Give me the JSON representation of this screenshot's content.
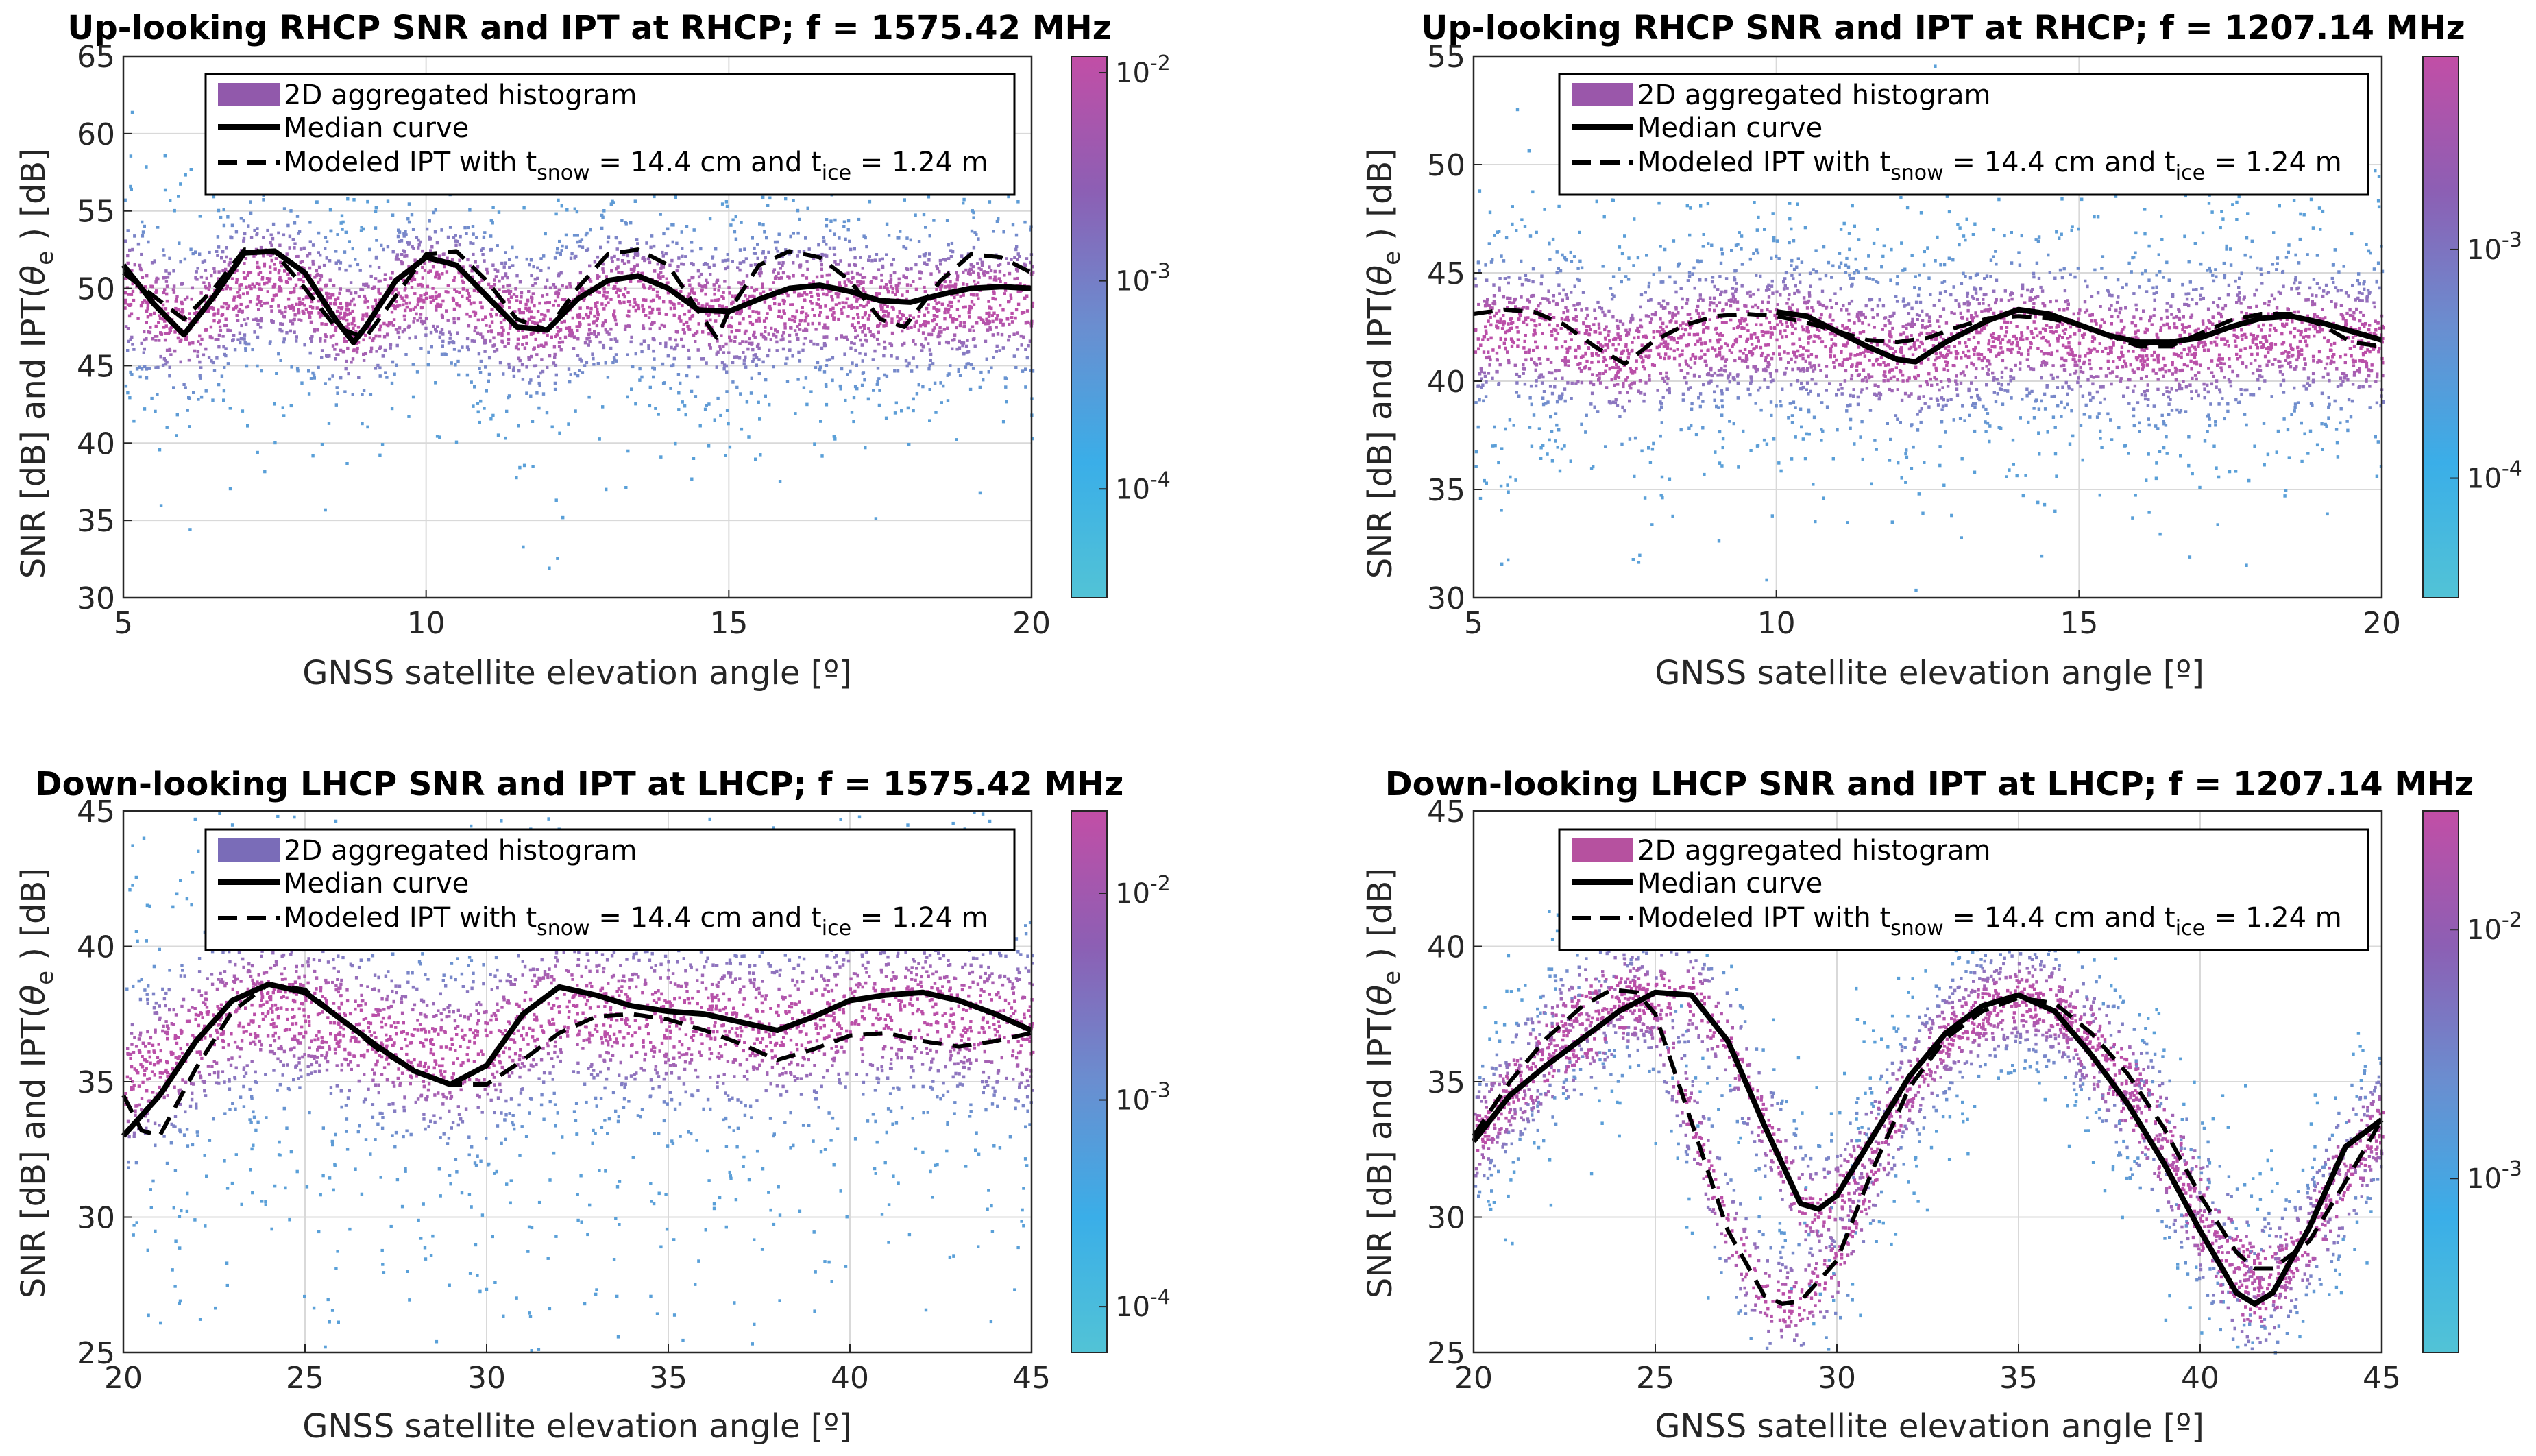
{
  "chart_data": [
    {
      "type": "heatmap",
      "title": "Up-looking RHCP SNR and IPT at RHCP; f = 1575.42 MHz",
      "xlabel": "GNSS satellite elevation angle [º]",
      "ylabel": "SNR [dB] and IPT(θe ) [dB]",
      "xlim": [
        5,
        20
      ],
      "ylim": [
        30,
        65
      ],
      "xticks": [
        "5",
        "10",
        "15",
        "20"
      ],
      "yticks": [
        "30",
        "35",
        "40",
        "45",
        "50",
        "55",
        "60",
        "65"
      ],
      "grid": true,
      "legend": {
        "position": "top",
        "entries": [
          "2D aggregated histogram",
          "Median curve",
          "Modeled IPT with t"
        ],
        "model_snow": "snow",
        "model_mid": " = 14.4 cm and t",
        "model_ice": "ice",
        "model_end": " = 1.24 m"
      },
      "colorbar": {
        "scale": "log",
        "range": [
          3e-05,
          0.012
        ],
        "ticks": [
          "10-4",
          "10-3",
          "10-2"
        ],
        "tick_exponents": [
          -4,
          -3,
          -2
        ]
      },
      "histogram": {
        "x_range": [
          5,
          20
        ],
        "center_y": 48.5,
        "spread": [
          4.5,
          2.2
        ],
        "max_color": "#bb4fa8",
        "min_color": "#5aa0d8"
      },
      "series": [
        {
          "name": "Median curve",
          "style": "solid",
          "x": [
            5,
            5.5,
            6,
            6.5,
            7,
            7.5,
            8,
            8.5,
            8.8,
            9,
            9.5,
            10,
            10.5,
            11,
            11.5,
            12,
            12.5,
            13,
            13.5,
            14,
            14.5,
            15,
            15.5,
            16,
            16.5,
            17,
            17.5,
            18,
            18.5,
            19,
            19.5,
            20
          ],
          "values": [
            51.5,
            49,
            47,
            49.5,
            52.3,
            52.4,
            51,
            48,
            46.5,
            47.5,
            50.5,
            52,
            51.5,
            49.5,
            47.5,
            47.3,
            49.3,
            50.5,
            50.8,
            50,
            48.6,
            48.5,
            49.3,
            50,
            50.2,
            49.8,
            49.2,
            49.1,
            49.6,
            50,
            50.1,
            50
          ]
        },
        {
          "name": "Modeled IPT",
          "style": "dashed",
          "x": [
            5,
            5.5,
            6,
            6.5,
            7,
            7.5,
            8,
            8.5,
            9,
            9.5,
            10,
            10.5,
            11,
            11.5,
            12,
            12.5,
            13,
            13.5,
            14,
            14.5,
            14.8,
            15,
            15.5,
            16,
            16.5,
            17,
            17.5,
            17.9,
            18.5,
            19,
            19.5,
            20
          ],
          "values": [
            51,
            49.5,
            48,
            50,
            52.5,
            52.3,
            50,
            47.5,
            46.8,
            49.5,
            52.2,
            52.4,
            50.5,
            48,
            47.3,
            50,
            52.2,
            52.5,
            51.5,
            48.5,
            46.8,
            48.5,
            51.5,
            52.4,
            52,
            50.5,
            48,
            47.5,
            50.5,
            52.2,
            52,
            51
          ]
        }
      ]
    },
    {
      "type": "heatmap",
      "title": "Up-looking RHCP SNR and IPT at RHCP; f = 1207.14 MHz",
      "xlabel": "GNSS satellite elevation angle [º]",
      "ylabel": "SNR [dB] and IPT(θe ) [dB]",
      "xlim": [
        5,
        20
      ],
      "ylim": [
        30,
        55
      ],
      "xticks": [
        "5",
        "10",
        "15",
        "20"
      ],
      "yticks": [
        "30",
        "35",
        "40",
        "45",
        "50",
        "55"
      ],
      "grid": true,
      "legend": {
        "position": "top",
        "entries": [
          "2D aggregated histogram",
          "Median curve",
          "Modeled IPT with t"
        ],
        "model_snow": "snow",
        "model_mid": " = 14.4 cm and t",
        "model_ice": "ice",
        "model_end": " = 1.24 m"
      },
      "colorbar": {
        "scale": "log",
        "range": [
          3e-05,
          0.007
        ],
        "ticks": [
          "10-4",
          "10-3"
        ],
        "tick_exponents": [
          -4,
          -3
        ]
      },
      "histogram": {
        "x_range": [
          5,
          20
        ],
        "center_y": 41.5,
        "spread": [
          4,
          1.6
        ],
        "max_color": "#bb4fa8",
        "min_color": "#5aa0d8"
      },
      "series": [
        {
          "name": "Median curve",
          "style": "solid",
          "x": [
            10,
            10.5,
            11,
            11.5,
            12,
            12.3,
            12.8,
            13.5,
            14,
            14.5,
            15,
            15.5,
            16,
            16.5,
            17,
            17.5,
            18,
            18.5,
            19,
            19.5,
            20
          ],
          "values": [
            43.2,
            43,
            42.3,
            41.6,
            41,
            40.9,
            41.8,
            42.8,
            43.3,
            43.1,
            42.6,
            42.1,
            41.8,
            41.8,
            42,
            42.5,
            42.9,
            43,
            42.7,
            42.3,
            41.9
          ]
        },
        {
          "name": "Modeled IPT",
          "style": "dashed",
          "x": [
            5,
            5.5,
            6,
            6.5,
            7,
            7.5,
            8,
            8.5,
            9,
            9.5,
            10,
            10.5,
            11,
            11.5,
            12,
            12.5,
            13,
            13.5,
            14,
            14.5,
            15,
            15.5,
            16,
            16.5,
            17,
            17.5,
            18,
            18.5,
            19,
            19.5,
            20
          ],
          "values": [
            43.1,
            43.3,
            43.2,
            42.6,
            41.6,
            40.8,
            41.9,
            42.6,
            43,
            43.1,
            43,
            42.7,
            42.3,
            41.9,
            41.8,
            42,
            42.5,
            42.9,
            43,
            42.9,
            42.6,
            42.1,
            41.6,
            41.6,
            42.2,
            42.8,
            43.1,
            43.1,
            42.6,
            41.8,
            41.6
          ]
        }
      ]
    },
    {
      "type": "heatmap",
      "title": "Down-looking LHCP SNR and IPT at LHCP; f = 1575.42 MHz",
      "xlabel": "GNSS satellite elevation angle [º]",
      "ylabel": "SNR [dB] and IPT(θe ) [dB]",
      "xlim": [
        20,
        45
      ],
      "ylim": [
        25,
        45
      ],
      "xticks": [
        "20",
        "25",
        "30",
        "35",
        "40",
        "45"
      ],
      "yticks": [
        "25",
        "30",
        "35",
        "40",
        "45"
      ],
      "grid": true,
      "legend": {
        "position": "top",
        "entries": [
          "2D aggregated histogram",
          "Median curve",
          "Modeled IPT with t"
        ],
        "model_snow": "snow",
        "model_mid": " = 14.4 cm and t",
        "model_ice": "ice",
        "model_end": " = 1.24 m"
      },
      "colorbar": {
        "scale": "log",
        "range": [
          6e-05,
          0.025
        ],
        "ticks": [
          "10-4",
          "10-3",
          "10-2"
        ],
        "tick_exponents": [
          -4,
          -3,
          -2
        ]
      },
      "histogram": {
        "x_range": [
          20,
          45
        ],
        "center_y": 37,
        "spread": [
          6,
          1.6
        ],
        "max_color": "#bb4fa8",
        "min_color": "#5aa0d8"
      },
      "series": [
        {
          "name": "Median curve",
          "style": "solid",
          "x": [
            20,
            21,
            22,
            23,
            24,
            25,
            26,
            27,
            28,
            29,
            30,
            31,
            32,
            33,
            34,
            35,
            36,
            37,
            38,
            39,
            40,
            41,
            42,
            43,
            44,
            45
          ],
          "values": [
            33,
            34.5,
            36.5,
            38,
            38.6,
            38.3,
            37.3,
            36.3,
            35.4,
            34.9,
            35.6,
            37.5,
            38.5,
            38.2,
            37.8,
            37.6,
            37.5,
            37.2,
            36.9,
            37.4,
            38,
            38.2,
            38.3,
            38,
            37.5,
            36.9
          ]
        },
        {
          "name": "Modeled IPT",
          "style": "dashed",
          "x": [
            20,
            20.5,
            21,
            22,
            23,
            24,
            25,
            26,
            27,
            28,
            29,
            30,
            31,
            32,
            33,
            34,
            35,
            36,
            37,
            38,
            39,
            40,
            41,
            42,
            43,
            44,
            45
          ],
          "values": [
            34.5,
            33.2,
            33,
            35.5,
            37.6,
            38.6,
            38.4,
            37.3,
            36.2,
            35.4,
            34.9,
            34.9,
            35.8,
            36.8,
            37.4,
            37.5,
            37.3,
            36.9,
            36.4,
            35.8,
            36.2,
            36.7,
            36.8,
            36.5,
            36.3,
            36.5,
            36.8
          ]
        }
      ]
    },
    {
      "type": "heatmap",
      "title": "Down-looking LHCP SNR and IPT at LHCP; f = 1207.14 MHz",
      "xlabel": "GNSS satellite elevation angle [º]",
      "ylabel": "SNR [dB] and IPT(θe ) [dB]",
      "xlim": [
        20,
        45
      ],
      "ylim": [
        25,
        45
      ],
      "xticks": [
        "20",
        "25",
        "30",
        "35",
        "40",
        "45"
      ],
      "yticks": [
        "25",
        "30",
        "35",
        "40",
        "45"
      ],
      "grid": true,
      "legend": {
        "position": "top",
        "entries": [
          "2D aggregated histogram",
          "Median curve",
          "Modeled IPT with t"
        ],
        "model_snow": "snow",
        "model_mid": " = 14.4 cm and t",
        "model_ice": "ice",
        "model_end": " = 1.24 m"
      },
      "colorbar": {
        "scale": "log",
        "range": [
          0.0002,
          0.03
        ],
        "ticks": [
          "10-3",
          "10-2"
        ],
        "tick_exponents": [
          -3,
          -2
        ]
      },
      "histogram": {
        "x_range": [
          20,
          45
        ],
        "follow_series": true,
        "spread": [
          2.2,
          1.0
        ],
        "max_color": "#bb4fa8",
        "min_color": "#5aa0d8"
      },
      "series": [
        {
          "name": "Median curve",
          "style": "solid",
          "x": [
            20,
            21,
            22,
            23,
            24,
            25,
            26,
            27,
            28,
            29,
            29.5,
            30,
            31,
            32,
            33,
            34,
            35,
            36,
            37,
            38,
            39,
            40,
            41,
            41.5,
            42,
            43,
            44,
            45
          ],
          "values": [
            32.8,
            34.5,
            35.6,
            36.6,
            37.6,
            38.3,
            38.2,
            36.5,
            33.4,
            30.5,
            30.3,
            30.8,
            33,
            35.2,
            36.8,
            37.8,
            38.2,
            37.6,
            36,
            34.2,
            32,
            29.5,
            27.2,
            26.8,
            27.2,
            29.6,
            32.6,
            33.6
          ]
        },
        {
          "name": "Modeled IPT",
          "style": "dashed",
          "x": [
            20,
            21,
            22,
            23,
            23.8,
            24.5,
            25,
            26,
            27,
            28,
            28.5,
            29,
            30,
            31,
            32,
            33,
            34,
            35,
            36,
            37,
            38,
            39,
            40,
            41,
            41.5,
            42,
            43,
            44,
            45
          ],
          "values": [
            33,
            35,
            36.6,
            37.8,
            38.4,
            38.3,
            37.5,
            33.5,
            29.5,
            27.1,
            26.8,
            26.9,
            28.4,
            31.8,
            34.8,
            36.6,
            37.6,
            38.1,
            37.9,
            36.8,
            35.3,
            33.3,
            30.8,
            28.7,
            28.1,
            28.1,
            29.1,
            31.3,
            33.6
          ]
        }
      ]
    }
  ]
}
